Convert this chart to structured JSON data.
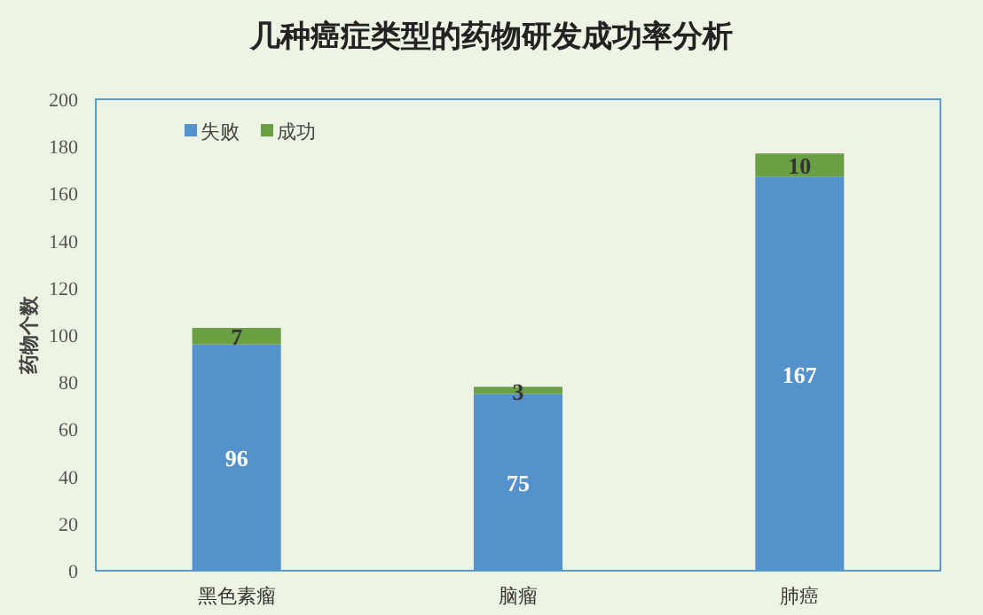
{
  "chart_data": {
    "type": "bar",
    "title": "几种癌症类型的药物研发成功率分析",
    "ylabel": "药物个数",
    "categories": [
      "黑色素瘤",
      "脑瘤",
      "肺癌"
    ],
    "series": [
      {
        "name": "失败",
        "color": "#5592cb",
        "values": [
          96,
          75,
          167
        ]
      },
      {
        "name": "成功",
        "color": "#6a9f44",
        "values": [
          7,
          3,
          10
        ]
      }
    ],
    "stacked": true,
    "data_labels": true,
    "ylim": [
      0,
      200
    ],
    "yticks": [
      0,
      20,
      40,
      60,
      80,
      100,
      120,
      140,
      160,
      180,
      200
    ],
    "legend": "top left"
  }
}
